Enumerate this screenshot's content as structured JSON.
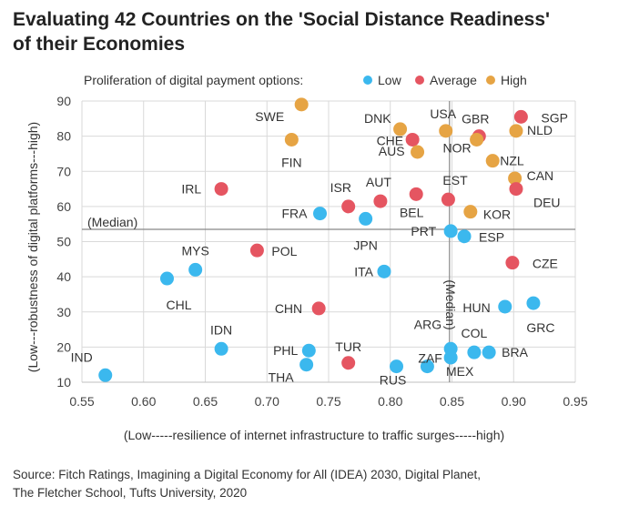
{
  "title_line1": "Evaluating 42 Countries on the 'Social Distance Readiness'",
  "title_line2": "of their Economies",
  "source_line1": "Source: Fitch Ratings, Imagining a Digital Economy for All (IDEA) 2030, Digital Planet,",
  "source_line2": "The Fletcher School, Tufts University, 2020",
  "colors": {
    "Low": "#3bb8ee",
    "Average": "#e55561",
    "High": "#e6a444",
    "grid": "#d9d9d9",
    "median": "#888888"
  },
  "chart_data": {
    "type": "scatter",
    "xlabel": "(Low-----resilience of internet infrastructure to traffic surges-----high)",
    "ylabel": "(Low---robustness of digital platforms---high)",
    "xlim": [
      0.55,
      0.95
    ],
    "ylim": [
      10,
      90
    ],
    "xticks": [
      0.55,
      0.6,
      0.65,
      0.7,
      0.75,
      0.8,
      0.85,
      0.9,
      0.95
    ],
    "yticks": [
      10,
      20,
      30,
      40,
      50,
      60,
      70,
      80,
      90
    ],
    "grid": true,
    "legend_title": "Proliferation of digital payment options:",
    "legend": [
      "Low",
      "Average",
      "High"
    ],
    "median_x": 0.848,
    "median_y": 53.5,
    "median_label_h": "(Median)",
    "median_label_v": "(Median)",
    "points": [
      {
        "label": "SWE",
        "x": 0.728,
        "y": 89,
        "cat": "High"
      },
      {
        "label": "FIN",
        "x": 0.72,
        "y": 79,
        "cat": "High"
      },
      {
        "label": "DNK",
        "x": 0.808,
        "y": 82,
        "cat": "High"
      },
      {
        "label": "USA",
        "x": 0.845,
        "y": 81.5,
        "cat": "High"
      },
      {
        "label": "CHE",
        "x": 0.818,
        "y": 79,
        "cat": "Average"
      },
      {
        "label": "GBR",
        "x": 0.872,
        "y": 80,
        "cat": "Average"
      },
      {
        "label": "SGP",
        "x": 0.906,
        "y": 85.5,
        "cat": "Average"
      },
      {
        "label": "NOR",
        "x": 0.87,
        "y": 79,
        "cat": "High"
      },
      {
        "label": "NLD",
        "x": 0.902,
        "y": 81.5,
        "cat": "High"
      },
      {
        "label": "AUS",
        "x": 0.822,
        "y": 75.5,
        "cat": "High"
      },
      {
        "label": "NZL",
        "x": 0.883,
        "y": 73,
        "cat": "High"
      },
      {
        "label": "CAN",
        "x": 0.901,
        "y": 68,
        "cat": "High"
      },
      {
        "label": "DEU",
        "x": 0.902,
        "y": 65,
        "cat": "Average"
      },
      {
        "label": "IRL",
        "x": 0.663,
        "y": 65,
        "cat": "Average"
      },
      {
        "label": "ISR",
        "x": 0.766,
        "y": 60,
        "cat": "Average"
      },
      {
        "label": "AUT",
        "x": 0.792,
        "y": 61.5,
        "cat": "Average"
      },
      {
        "label": "BEL",
        "x": 0.821,
        "y": 63.5,
        "cat": "Average"
      },
      {
        "label": "EST",
        "x": 0.847,
        "y": 62,
        "cat": "Average"
      },
      {
        "label": "KOR",
        "x": 0.865,
        "y": 58.5,
        "cat": "High"
      },
      {
        "label": "FRA",
        "x": 0.743,
        "y": 58,
        "cat": "Low"
      },
      {
        "label": "JPN",
        "x": 0.78,
        "y": 56.5,
        "cat": "Low"
      },
      {
        "label": "PRT",
        "x": 0.849,
        "y": 53,
        "cat": "Low"
      },
      {
        "label": "ESP",
        "x": 0.86,
        "y": 51.5,
        "cat": "Low"
      },
      {
        "label": "POL",
        "x": 0.692,
        "y": 47.5,
        "cat": "Average"
      },
      {
        "label": "MYS",
        "x": 0.642,
        "y": 42,
        "cat": "Low"
      },
      {
        "label": "CHL",
        "x": 0.619,
        "y": 39.5,
        "cat": "Low"
      },
      {
        "label": "ITA",
        "x": 0.795,
        "y": 41.5,
        "cat": "Low"
      },
      {
        "label": "CZE",
        "x": 0.899,
        "y": 44,
        "cat": "Average"
      },
      {
        "label": "HUN",
        "x": 0.893,
        "y": 31.5,
        "cat": "Low"
      },
      {
        "label": "GRC",
        "x": 0.916,
        "y": 32.5,
        "cat": "Low"
      },
      {
        "label": "CHN",
        "x": 0.742,
        "y": 31,
        "cat": "Average"
      },
      {
        "label": "IDN",
        "x": 0.663,
        "y": 19.5,
        "cat": "Low"
      },
      {
        "label": "PHL",
        "x": 0.734,
        "y": 19,
        "cat": "Low"
      },
      {
        "label": "THA",
        "x": 0.732,
        "y": 15,
        "cat": "Low"
      },
      {
        "label": "TUR",
        "x": 0.766,
        "y": 15.5,
        "cat": "Average"
      },
      {
        "label": "RUS",
        "x": 0.805,
        "y": 14.5,
        "cat": "Low"
      },
      {
        "label": "ZAF",
        "x": 0.83,
        "y": 14.5,
        "cat": "Low"
      },
      {
        "label": "ARG",
        "x": 0.849,
        "y": 19.5,
        "cat": "Low"
      },
      {
        "label": "MEX",
        "x": 0.849,
        "y": 17,
        "cat": "Low"
      },
      {
        "label": "COL",
        "x": 0.868,
        "y": 18.5,
        "cat": "Low"
      },
      {
        "label": "BRA",
        "x": 0.88,
        "y": 18.5,
        "cat": "Low"
      },
      {
        "label": "IND",
        "x": 0.569,
        "y": 12,
        "cat": "Low"
      }
    ]
  }
}
